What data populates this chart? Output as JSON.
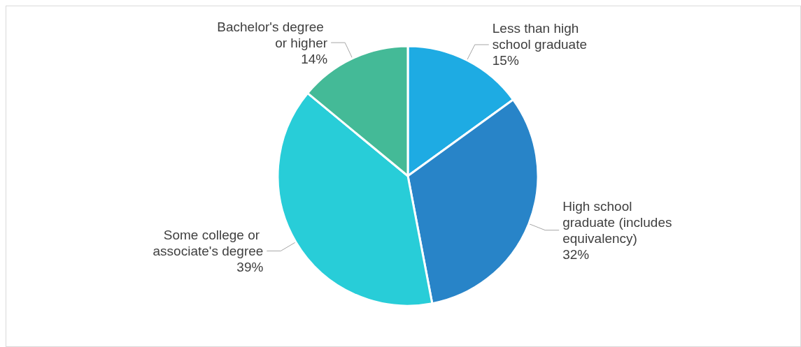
{
  "chart_data": {
    "type": "pie",
    "categories": [
      "Less than high school graduate",
      "High school graduate (includes equivalency)",
      "Some college or associate's degree",
      "Bachelor's degree or higher"
    ],
    "values": [
      15,
      32,
      39,
      14
    ],
    "value_labels": [
      "15%",
      "32%",
      "39%",
      "14%"
    ],
    "colors": [
      "#1eabe3",
      "#2884c8",
      "#28cdd8",
      "#44ba97"
    ],
    "legend": false
  }
}
